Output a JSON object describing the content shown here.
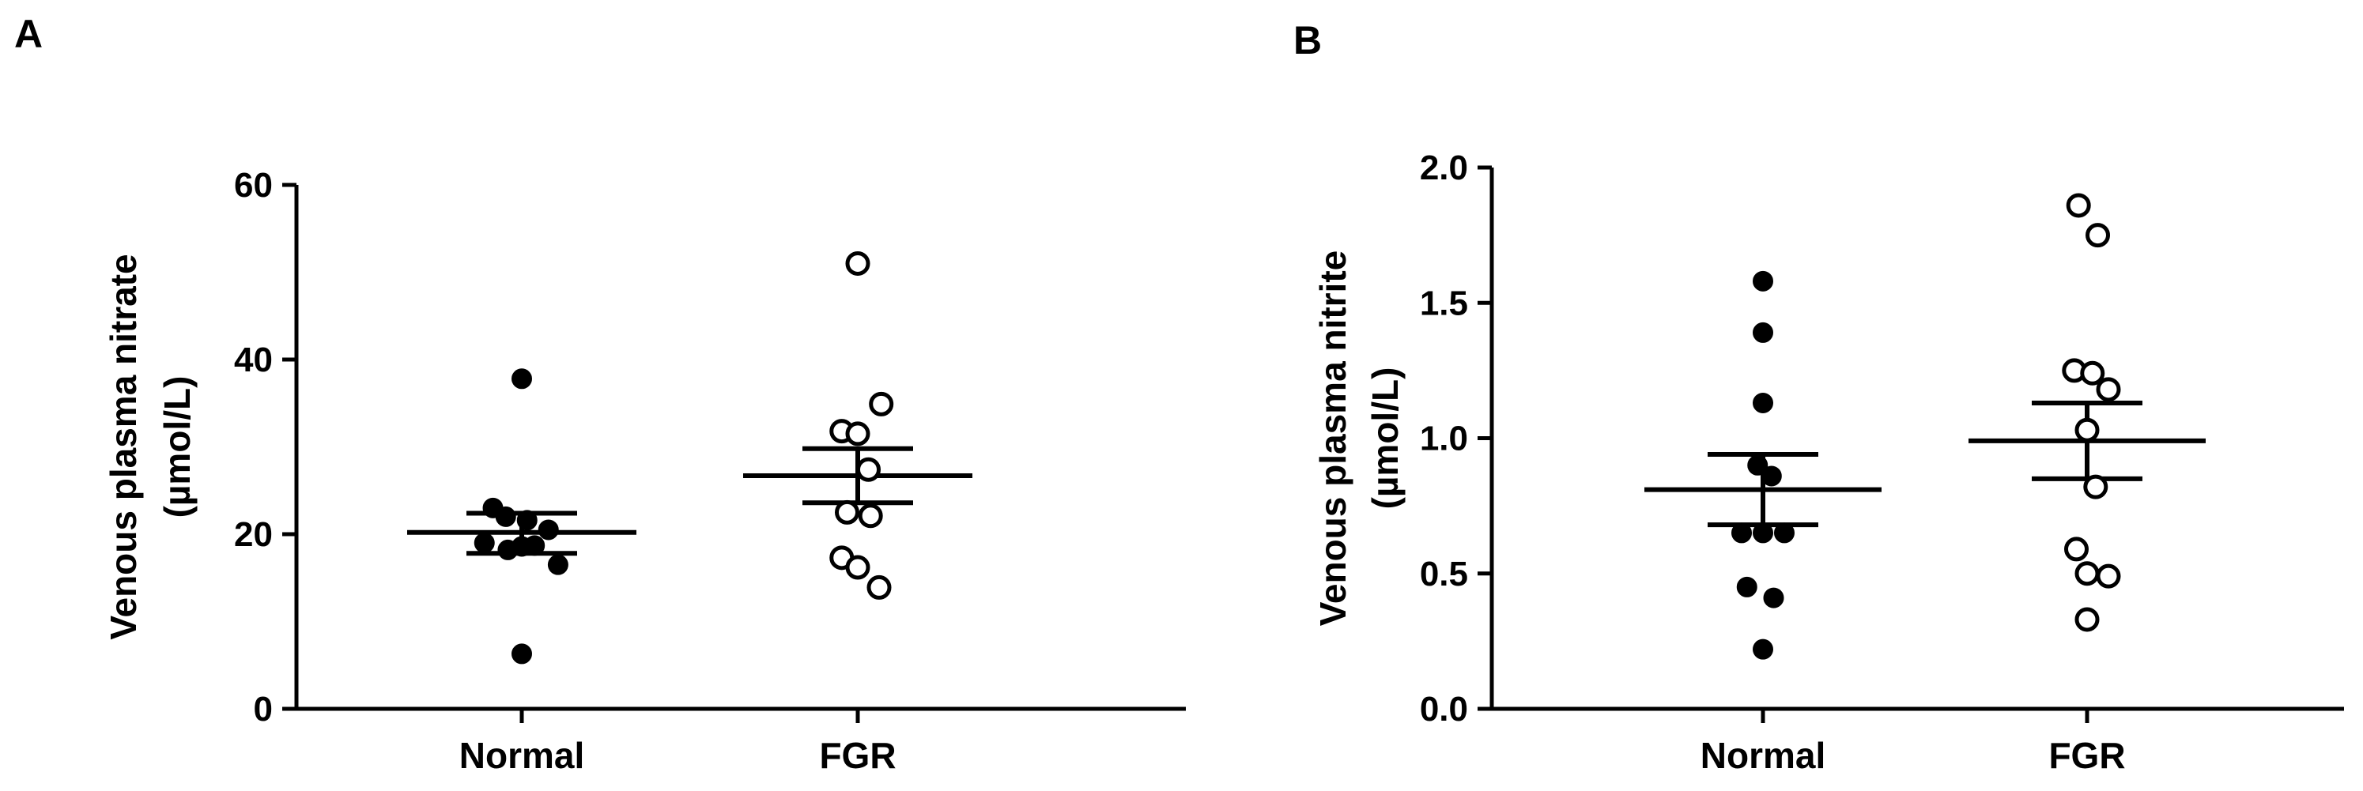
{
  "chart_data": [
    {
      "panel": "A",
      "type": "scatter",
      "ylabel": [
        "Venous plasma nitrate",
        "(µmol/L)"
      ],
      "categories": [
        "Normal",
        "FGR"
      ],
      "ylim": [
        0,
        60
      ],
      "yticks": [
        0,
        20,
        40,
        60
      ],
      "ytick_labels": [
        "0",
        "20",
        "40",
        "60"
      ],
      "grid": false,
      "series": [
        {
          "category": "Normal",
          "marker": "filled-circle",
          "points": [
            {
              "jitter": 0.0,
              "y": 37.8
            },
            {
              "jitter": -0.27,
              "y": 23.0
            },
            {
              "jitter": -0.15,
              "y": 22.0
            },
            {
              "jitter": 0.05,
              "y": 21.6
            },
            {
              "jitter": 0.25,
              "y": 20.5
            },
            {
              "jitter": -0.35,
              "y": 19.0
            },
            {
              "jitter": -0.13,
              "y": 18.2
            },
            {
              "jitter": 0.0,
              "y": 18.6
            },
            {
              "jitter": 0.12,
              "y": 18.7
            },
            {
              "jitter": 0.34,
              "y": 16.5
            },
            {
              "jitter": 0.0,
              "y": 6.3
            }
          ],
          "mean": 20.2,
          "sem": [
            17.8,
            22.4
          ]
        },
        {
          "category": "FGR",
          "marker": "open-circle",
          "points": [
            {
              "jitter": 0.0,
              "y": 51.0
            },
            {
              "jitter": 0.22,
              "y": 34.9
            },
            {
              "jitter": -0.15,
              "y": 31.8
            },
            {
              "jitter": 0.0,
              "y": 31.5
            },
            {
              "jitter": 0.1,
              "y": 27.4
            },
            {
              "jitter": -0.1,
              "y": 22.5
            },
            {
              "jitter": 0.12,
              "y": 22.1
            },
            {
              "jitter": -0.15,
              "y": 17.3
            },
            {
              "jitter": 0.0,
              "y": 16.2
            },
            {
              "jitter": 0.2,
              "y": 13.9
            }
          ],
          "mean": 26.7,
          "sem": [
            23.6,
            29.8
          ]
        }
      ]
    },
    {
      "panel": "B",
      "type": "scatter",
      "ylabel": [
        "Venous plasma nitrite",
        "(µmol/L)"
      ],
      "categories": [
        "Normal",
        "FGR"
      ],
      "ylim": [
        0,
        2.0
      ],
      "yticks": [
        0,
        0.5,
        1.0,
        1.5,
        2.0
      ],
      "ytick_labels": [
        "0.0",
        "0.5",
        "1.0",
        "1.5",
        "2.0"
      ],
      "grid": false,
      "series": [
        {
          "category": "Normal",
          "marker": "filled-circle",
          "points": [
            {
              "jitter": 0.0,
              "y": 1.58
            },
            {
              "jitter": 0.0,
              "y": 1.39
            },
            {
              "jitter": 0.0,
              "y": 1.13
            },
            {
              "jitter": -0.05,
              "y": 0.9
            },
            {
              "jitter": 0.08,
              "y": 0.86
            },
            {
              "jitter": -0.2,
              "y": 0.65
            },
            {
              "jitter": 0.0,
              "y": 0.65
            },
            {
              "jitter": 0.2,
              "y": 0.65
            },
            {
              "jitter": -0.15,
              "y": 0.45
            },
            {
              "jitter": 0.1,
              "y": 0.41
            },
            {
              "jitter": 0.0,
              "y": 0.22
            }
          ],
          "mean": 0.81,
          "sem": [
            0.68,
            0.94
          ]
        },
        {
          "category": "FGR",
          "marker": "open-circle",
          "points": [
            {
              "jitter": -0.08,
              "y": 1.86
            },
            {
              "jitter": 0.1,
              "y": 1.75
            },
            {
              "jitter": -0.12,
              "y": 1.25
            },
            {
              "jitter": 0.05,
              "y": 1.24
            },
            {
              "jitter": 0.2,
              "y": 1.18
            },
            {
              "jitter": 0.0,
              "y": 1.03
            },
            {
              "jitter": 0.08,
              "y": 0.82
            },
            {
              "jitter": -0.1,
              "y": 0.59
            },
            {
              "jitter": 0.0,
              "y": 0.5
            },
            {
              "jitter": 0.2,
              "y": 0.49
            },
            {
              "jitter": 0.0,
              "y": 0.33
            }
          ],
          "mean": 0.99,
          "sem": [
            0.85,
            1.13
          ]
        }
      ]
    }
  ]
}
